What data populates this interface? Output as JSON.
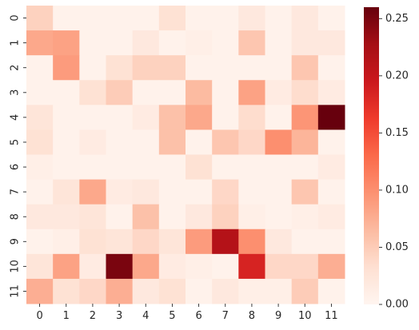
{
  "chart_data": {
    "type": "heatmap",
    "title": "",
    "xlabel": "",
    "ylabel": "",
    "x_tick_labels": [
      "0",
      "1",
      "2",
      "3",
      "4",
      "5",
      "6",
      "7",
      "8",
      "9",
      "10",
      "11"
    ],
    "y_tick_labels": [
      "0",
      "1",
      "2",
      "3",
      "4",
      "5",
      "6",
      "7",
      "8",
      "9",
      "10",
      "11"
    ],
    "colormap": "Reds",
    "color_range": [
      0,
      0.26
    ],
    "colorbar_ticks": [
      0.0,
      0.05,
      0.1,
      0.15,
      0.2,
      0.25
    ],
    "colorbar_tick_labels": [
      "0.00",
      "0.05",
      "0.10",
      "0.15",
      "0.20",
      "0.25"
    ],
    "values": [
      [
        0.045,
        0.005,
        0.005,
        0.005,
        0.005,
        0.03,
        0.005,
        0.005,
        0.02,
        0.005,
        0.02,
        0.005
      ],
      [
        0.08,
        0.085,
        0.005,
        0.005,
        0.02,
        0.005,
        0.01,
        0.005,
        0.055,
        0.005,
        0.02,
        0.02
      ],
      [
        0.005,
        0.09,
        0.005,
        0.03,
        0.045,
        0.045,
        0.005,
        0.005,
        0.005,
        0.005,
        0.055,
        0.005
      ],
      [
        0.005,
        0.005,
        0.03,
        0.05,
        0.005,
        0.005,
        0.065,
        0.005,
        0.085,
        0.015,
        0.035,
        0.015
      ],
      [
        0.025,
        0.005,
        0.005,
        0.005,
        0.015,
        0.06,
        0.08,
        0.005,
        0.035,
        0.005,
        0.095,
        0.26
      ],
      [
        0.03,
        0.005,
        0.015,
        0.005,
        0.005,
        0.06,
        0.005,
        0.055,
        0.04,
        0.1,
        0.07,
        0.005
      ],
      [
        0.01,
        0.005,
        0.005,
        0.005,
        0.005,
        0.005,
        0.03,
        0.005,
        0.005,
        0.005,
        0.005,
        0.015
      ],
      [
        0.005,
        0.025,
        0.08,
        0.015,
        0.02,
        0.005,
        0.005,
        0.04,
        0.005,
        0.005,
        0.055,
        0.005
      ],
      [
        0.02,
        0.02,
        0.025,
        0.005,
        0.06,
        0.005,
        0.02,
        0.045,
        0.01,
        0.005,
        0.01,
        0.015
      ],
      [
        0.005,
        0.01,
        0.03,
        0.025,
        0.04,
        0.025,
        0.09,
        0.215,
        0.1,
        0.02,
        0.005,
        0.005
      ],
      [
        0.025,
        0.085,
        0.015,
        0.25,
        0.08,
        0.015,
        0.01,
        0.005,
        0.185,
        0.04,
        0.04,
        0.075
      ],
      [
        0.075,
        0.03,
        0.04,
        0.075,
        0.02,
        0.03,
        0.005,
        0.02,
        0.01,
        0.01,
        0.05,
        0.005
      ]
    ]
  }
}
